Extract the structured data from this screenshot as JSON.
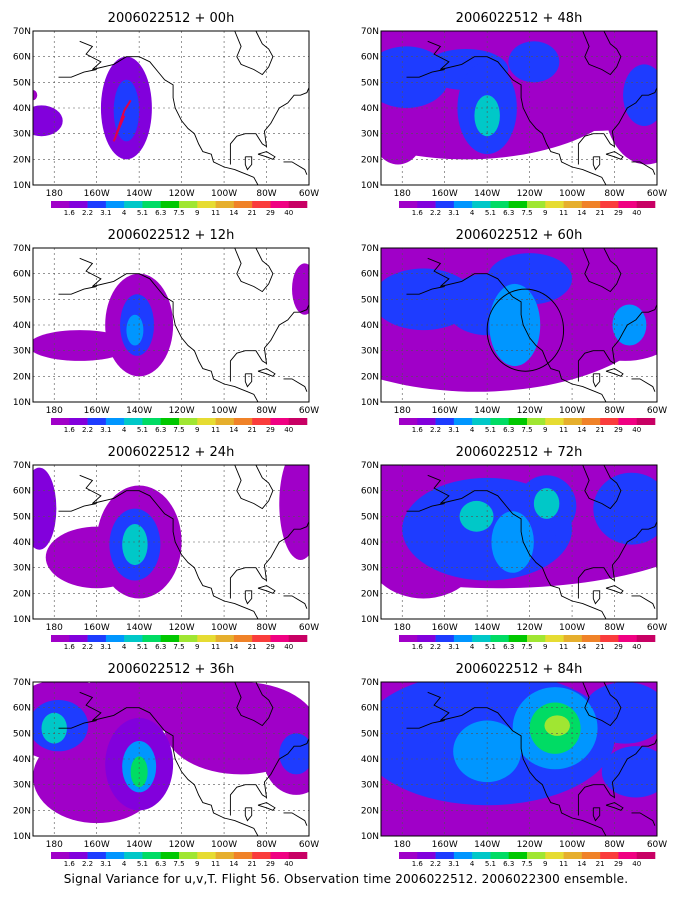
{
  "caption": "Signal Variance for u,v,T. Flight 56. Observation time 2006022512. 2006022300 ensemble.",
  "y_ticks": [
    "70N",
    "60N",
    "50N",
    "40N",
    "30N",
    "20N",
    "10N"
  ],
  "x_ticks": [
    "180",
    "160W",
    "140W",
    "120W",
    "100W",
    "80W",
    "60W"
  ],
  "colorbar": {
    "labels": [
      "1.6",
      "2.2",
      "3.1",
      "4",
      "5.1",
      "6.3",
      "7.5",
      "9",
      "11",
      "14",
      "21",
      "29",
      "40"
    ],
    "colors": [
      "#a000c8",
      "#8200dc",
      "#1e3cff",
      "#0096ff",
      "#00c8c8",
      "#00dc64",
      "#00c800",
      "#a0e632",
      "#e6dc32",
      "#e6af2d",
      "#f08228",
      "#fa3c3c",
      "#f00082",
      "#c80064"
    ]
  },
  "chart_data": {
    "type": "heatmap",
    "lat_range": [
      10,
      70
    ],
    "lon_range": [
      -190,
      -60
    ],
    "colorbar_levels": [
      1.6,
      2.2,
      3.1,
      4,
      5.1,
      6.3,
      7.5,
      9,
      11,
      14,
      21,
      29,
      40
    ],
    "panels": [
      {
        "title": "2006022512 + 00h",
        "lead_hours": 0,
        "blobs": [
          {
            "lon": -186,
            "lat": 35,
            "rlon": 5,
            "rlat": 3,
            "level": 1
          },
          {
            "lon": -146,
            "lat": 40,
            "rlon": 6,
            "rlat": 10,
            "level": 1
          },
          {
            "lon": -146,
            "lat": 39,
            "rlon": 3,
            "rlat": 6,
            "level": 2
          },
          {
            "lon": -190,
            "lat": 45,
            "rlon": 1,
            "rlat": 1,
            "level": 0
          }
        ],
        "track": [
          [
            -144,
            43
          ],
          [
            -147,
            39
          ],
          [
            -149,
            34
          ],
          [
            -151,
            29
          ],
          [
            -152,
            27
          ],
          [
            -150,
            31
          ],
          [
            -147,
            37
          ]
        ]
      },
      {
        "title": "2006022512 + 12h",
        "lead_hours": 12,
        "blobs": [
          {
            "lon": -168,
            "lat": 32,
            "rlon": 12,
            "rlat": 3,
            "level": 0
          },
          {
            "lon": -140,
            "lat": 40,
            "rlon": 8,
            "rlat": 10,
            "level": 0
          },
          {
            "lon": -141,
            "lat": 40,
            "rlon": 4,
            "rlat": 6,
            "level": 2
          },
          {
            "lon": -142,
            "lat": 38,
            "rlon": 2,
            "rlat": 3,
            "level": 3
          },
          {
            "lon": -62,
            "lat": 54,
            "rlon": 3,
            "rlat": 5,
            "level": 0
          }
        ]
      },
      {
        "title": "2006022512 + 24h",
        "lead_hours": 24,
        "blobs": [
          {
            "lon": -160,
            "lat": 34,
            "rlon": 12,
            "rlat": 6,
            "level": 0
          },
          {
            "lon": -140,
            "lat": 40,
            "rlon": 10,
            "rlat": 11,
            "level": 0
          },
          {
            "lon": -142,
            "lat": 39,
            "rlon": 6,
            "rlat": 7,
            "level": 2
          },
          {
            "lon": -142,
            "lat": 39,
            "rlon": 3,
            "rlat": 4,
            "level": 4
          },
          {
            "lon": -187,
            "lat": 53,
            "rlon": 4,
            "rlat": 8,
            "level": 1
          },
          {
            "lon": -64,
            "lat": 55,
            "rlon": 5,
            "rlat": 11,
            "level": 0
          },
          {
            "lon": -172,
            "lat": 29,
            "rlon": 3,
            "rlat": 2,
            "level": 0
          }
        ]
      },
      {
        "title": "2006022512 + 36h",
        "lead_hours": 36,
        "blobs": [
          {
            "lon": -175,
            "lat": 55,
            "rlon": 14,
            "rlat": 8,
            "level": 0
          },
          {
            "lon": -178,
            "lat": 53,
            "rlon": 7,
            "rlat": 5,
            "level": 2
          },
          {
            "lon": -180,
            "lat": 52,
            "rlon": 3,
            "rlat": 3,
            "level": 4
          },
          {
            "lon": -160,
            "lat": 33,
            "rlon": 15,
            "rlat": 9,
            "level": 0
          },
          {
            "lon": -140,
            "lat": 38,
            "rlon": 8,
            "rlat": 9,
            "level": 1
          },
          {
            "lon": -140,
            "lat": 37,
            "rlon": 4,
            "rlat": 5,
            "level": 3
          },
          {
            "lon": -140,
            "lat": 35,
            "rlon": 2,
            "rlat": 3,
            "level": 5
          },
          {
            "lon": -130,
            "lat": 63,
            "rlon": 20,
            "rlat": 6,
            "level": 0
          },
          {
            "lon": -92,
            "lat": 52,
            "rlon": 18,
            "rlat": 9,
            "level": 0
          },
          {
            "lon": -66,
            "lat": 42,
            "rlon": 8,
            "rlat": 8,
            "level": 0
          },
          {
            "lon": -66,
            "lat": 42,
            "rlon": 4,
            "rlat": 4,
            "level": 2
          }
        ]
      },
      {
        "title": "2006022512 + 48h",
        "lead_hours": 48,
        "blobs": [
          {
            "lon": -150,
            "lat": 52,
            "rlon": 40,
            "rlat": 16,
            "level": 0
          },
          {
            "lon": -92,
            "lat": 55,
            "rlon": 34,
            "rlat": 12,
            "level": 0
          },
          {
            "lon": -65,
            "lat": 42,
            "rlon": 10,
            "rlat": 12,
            "level": 0
          },
          {
            "lon": -182,
            "lat": 30,
            "rlon": 6,
            "rlat": 6,
            "level": 0
          },
          {
            "lon": -178,
            "lat": 52,
            "rlon": 10,
            "rlat": 6,
            "level": 2
          },
          {
            "lon": -150,
            "lat": 55,
            "rlon": 10,
            "rlat": 4,
            "level": 2
          },
          {
            "lon": -140,
            "lat": 40,
            "rlon": 7,
            "rlat": 9,
            "level": 2
          },
          {
            "lon": -140,
            "lat": 37,
            "rlon": 3,
            "rlat": 4,
            "level": 4
          },
          {
            "lon": -118,
            "lat": 58,
            "rlon": 6,
            "rlat": 4,
            "level": 2
          },
          {
            "lon": -66,
            "lat": 45,
            "rlon": 5,
            "rlat": 6,
            "level": 2
          }
        ]
      },
      {
        "title": "2006022512 + 60h",
        "lead_hours": 60,
        "blobs": [
          {
            "lon": -145,
            "lat": 48,
            "rlon": 44,
            "rlat": 17,
            "level": 0
          },
          {
            "lon": -92,
            "lat": 56,
            "rlon": 32,
            "rlat": 11,
            "level": 0
          },
          {
            "lon": -75,
            "lat": 42,
            "rlon": 14,
            "rlat": 8,
            "level": 0
          },
          {
            "lon": -182,
            "lat": 32,
            "rlon": 8,
            "rlat": 7,
            "level": 0
          },
          {
            "lon": -170,
            "lat": 50,
            "rlon": 12,
            "rlat": 6,
            "level": 2
          },
          {
            "lon": -140,
            "lat": 48,
            "rlon": 10,
            "rlat": 6,
            "level": 2
          },
          {
            "lon": -127,
            "lat": 40,
            "rlon": 6,
            "rlat": 8,
            "level": 3
          },
          {
            "lon": -120,
            "lat": 58,
            "rlon": 10,
            "rlat": 5,
            "level": 2
          },
          {
            "lon": -73,
            "lat": 40,
            "rlon": 4,
            "rlat": 4,
            "level": 3
          }
        ],
        "circle": {
          "lon": -122,
          "lat": 38,
          "rlon": 9,
          "rlat": 8
        }
      },
      {
        "title": "2006022512 + 72h",
        "lead_hours": 72,
        "blobs": [
          {
            "lon": -135,
            "lat": 52,
            "rlon": 54,
            "rlat": 15,
            "level": 0
          },
          {
            "lon": -170,
            "lat": 38,
            "rlon": 14,
            "rlat": 10,
            "level": 0
          },
          {
            "lon": -140,
            "lat": 45,
            "rlon": 20,
            "rlat": 10,
            "level": 2
          },
          {
            "lon": -145,
            "lat": 50,
            "rlon": 4,
            "rlat": 3,
            "level": 4
          },
          {
            "lon": -128,
            "lat": 40,
            "rlon": 5,
            "rlat": 6,
            "level": 3
          },
          {
            "lon": -112,
            "lat": 54,
            "rlon": 7,
            "rlat": 6,
            "level": 2
          },
          {
            "lon": -112,
            "lat": 55,
            "rlon": 3,
            "rlat": 3,
            "level": 4
          },
          {
            "lon": -72,
            "lat": 53,
            "rlon": 9,
            "rlat": 7,
            "level": 2
          }
        ]
      },
      {
        "title": "2006022512 + 84h",
        "lead_hours": 84,
        "blobs": [
          {
            "lon": -125,
            "lat": 45,
            "rlon": 66,
            "rlat": 21,
            "level": 0
          },
          {
            "lon": -140,
            "lat": 48,
            "rlon": 30,
            "rlat": 13,
            "level": 2
          },
          {
            "lon": -175,
            "lat": 55,
            "rlon": 8,
            "rlat": 5,
            "level": 2
          },
          {
            "lon": -140,
            "lat": 43,
            "rlon": 8,
            "rlat": 6,
            "level": 3
          },
          {
            "lon": -108,
            "lat": 52,
            "rlon": 10,
            "rlat": 8,
            "level": 3
          },
          {
            "lon": -108,
            "lat": 52,
            "rlon": 6,
            "rlat": 5,
            "level": 5
          },
          {
            "lon": -107,
            "lat": 53,
            "rlon": 3,
            "rlat": 2,
            "level": 7
          },
          {
            "lon": -75,
            "lat": 58,
            "rlon": 10,
            "rlat": 6,
            "level": 2
          },
          {
            "lon": -70,
            "lat": 35,
            "rlon": 8,
            "rlat": 5,
            "level": 2
          }
        ]
      }
    ]
  }
}
